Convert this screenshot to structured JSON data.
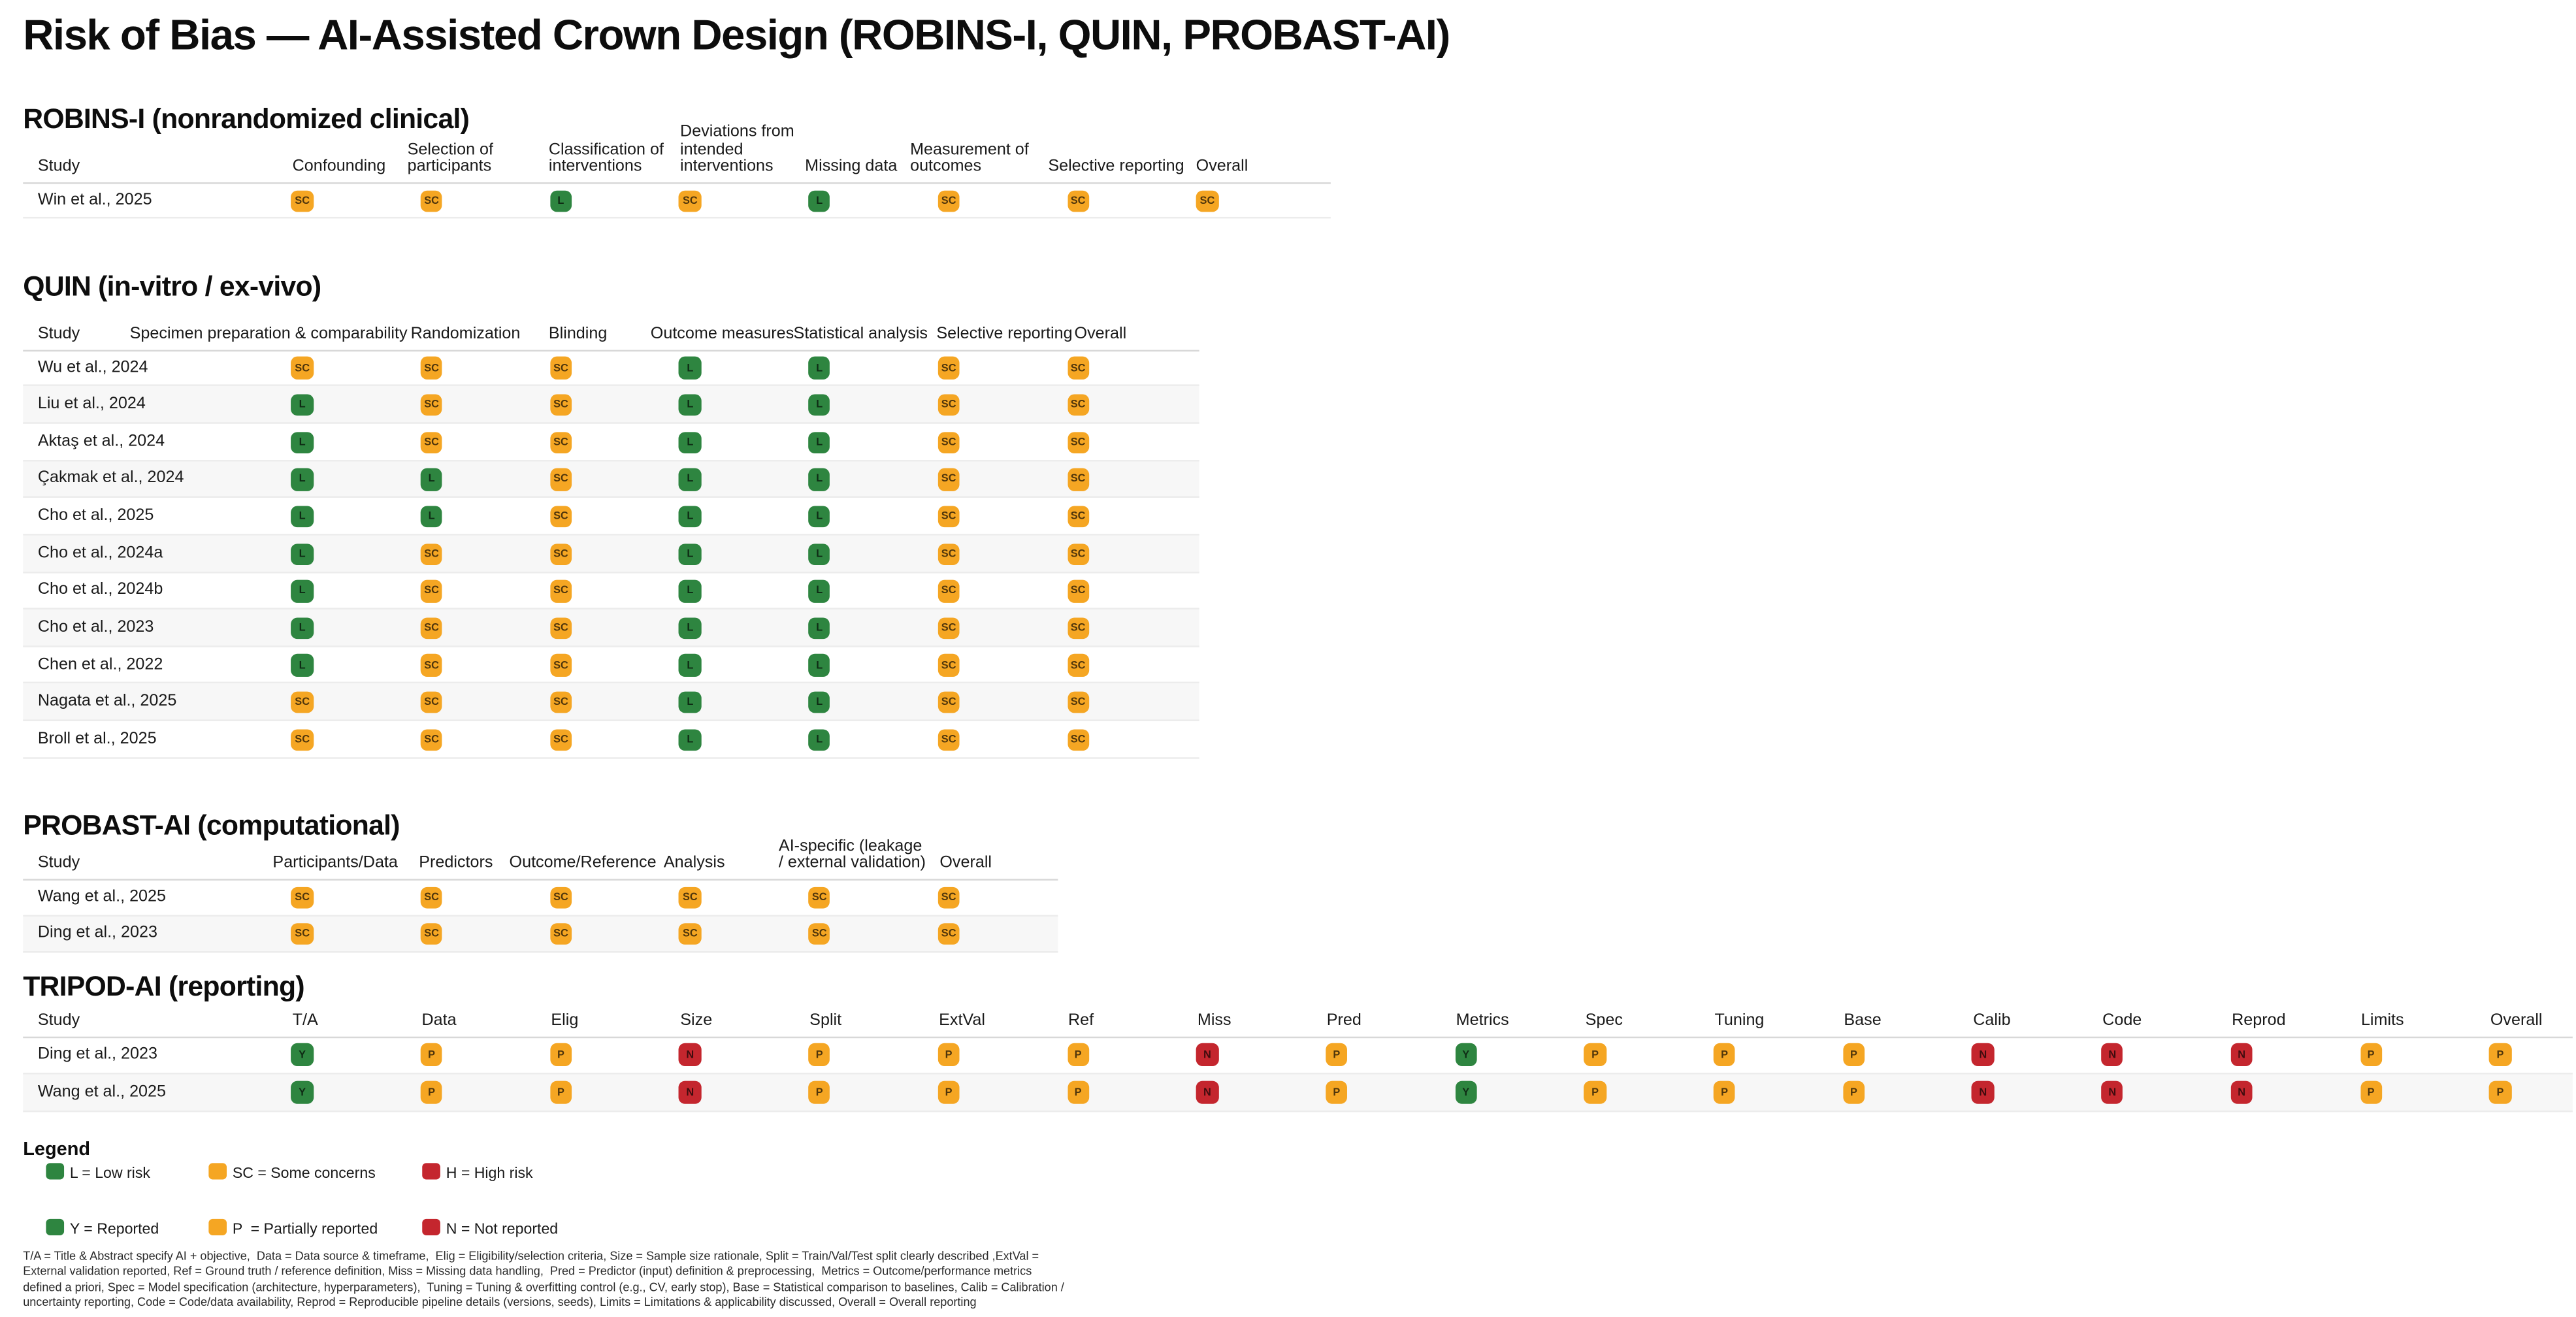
{
  "title": "Risk of Bias — AI-Assisted Crown Design (ROBINS-I, QUIN, PROBAST-AI)",
  "colors": {
    "low": "#2e8540",
    "some": "#f5a623",
    "high": "#c4262e"
  },
  "value_colors": {
    "L": "low",
    "SC": "some",
    "H": "high",
    "Y": "low",
    "P": "some",
    "N": "high"
  },
  "chart_data": [
    {
      "type": "table",
      "id": "robins",
      "title": "ROBINS-I (nonrandomized clinical)",
      "columns": [
        "Study",
        "Confounding",
        "Selection of participants",
        "Classification of interventions",
        "Deviations from intended interventions",
        "Missing data",
        "Measurement of outcomes",
        "Selective reporting",
        "Overall"
      ],
      "rows": [
        {
          "study": "Win et al., 2025",
          "values": [
            "SC",
            "SC",
            "L",
            "SC",
            "L",
            "SC",
            "SC",
            "SC"
          ]
        }
      ]
    },
    {
      "type": "table",
      "id": "quin",
      "title": "QUIN (in-vitro / ex-vivo)",
      "columns": [
        "Study",
        "Specimen preparation & comparability",
        "Randomization",
        "Blinding",
        "Outcome measures",
        "Statistical analysis",
        "Selective reporting",
        "Overall"
      ],
      "rows": [
        {
          "study": "Wu et al., 2024",
          "values": [
            "SC",
            "SC",
            "SC",
            "L",
            "L",
            "SC",
            "SC"
          ]
        },
        {
          "study": "Liu et al., 2024",
          "values": [
            "L",
            "SC",
            "SC",
            "L",
            "L",
            "SC",
            "SC"
          ]
        },
        {
          "study": "Aktaş et al., 2024",
          "values": [
            "L",
            "SC",
            "SC",
            "L",
            "L",
            "SC",
            "SC"
          ]
        },
        {
          "study": "Çakmak et al., 2024",
          "values": [
            "L",
            "L",
            "SC",
            "L",
            "L",
            "SC",
            "SC"
          ]
        },
        {
          "study": "Cho et al., 2025",
          "values": [
            "L",
            "L",
            "SC",
            "L",
            "L",
            "SC",
            "SC"
          ]
        },
        {
          "study": "Cho et al., 2024a",
          "values": [
            "L",
            "SC",
            "SC",
            "L",
            "L",
            "SC",
            "SC"
          ]
        },
        {
          "study": "Cho et al., 2024b",
          "values": [
            "L",
            "SC",
            "SC",
            "L",
            "L",
            "SC",
            "SC"
          ]
        },
        {
          "study": "Cho et al., 2023",
          "values": [
            "L",
            "SC",
            "SC",
            "L",
            "L",
            "SC",
            "SC"
          ]
        },
        {
          "study": "Chen et al., 2022",
          "values": [
            "L",
            "SC",
            "SC",
            "L",
            "L",
            "SC",
            "SC"
          ]
        },
        {
          "study": "Nagata et al., 2025",
          "values": [
            "SC",
            "SC",
            "SC",
            "L",
            "L",
            "SC",
            "SC"
          ]
        },
        {
          "study": "Broll et al., 2025",
          "values": [
            "SC",
            "SC",
            "SC",
            "L",
            "L",
            "SC",
            "SC"
          ]
        }
      ]
    },
    {
      "type": "table",
      "id": "probast",
      "title": "PROBAST-AI (computational)",
      "columns": [
        "Study",
        "Participants/Data",
        "Predictors",
        "Outcome/Reference",
        "Analysis",
        "AI-specific (leakage / external validation)",
        "Overall"
      ],
      "rows": [
        {
          "study": "Wang et al., 2025",
          "values": [
            "SC",
            "SC",
            "SC",
            "SC",
            "SC",
            "SC"
          ]
        },
        {
          "study": "Ding et al., 2023",
          "values": [
            "SC",
            "SC",
            "SC",
            "SC",
            "SC",
            "SC"
          ]
        }
      ]
    },
    {
      "type": "table",
      "id": "tripod",
      "title": "TRIPOD-AI (reporting)",
      "columns": [
        "Study",
        "T/A",
        "Data",
        "Elig",
        "Size",
        "Split",
        "ExtVal",
        "Ref",
        "Miss",
        "Pred",
        "Metrics",
        "Spec",
        "Tuning",
        "Base",
        "Calib",
        "Code",
        "Reprod",
        "Limits",
        "Overall"
      ],
      "rows": [
        {
          "study": "Ding et al., 2023",
          "values": [
            "Y",
            "P",
            "P",
            "N",
            "P",
            "P",
            "P",
            "N",
            "P",
            "Y",
            "P",
            "P",
            "P",
            "N",
            "N",
            "N",
            "P",
            "P"
          ]
        },
        {
          "study": "Wang et al., 2025",
          "values": [
            "Y",
            "P",
            "P",
            "N",
            "P",
            "P",
            "P",
            "N",
            "P",
            "Y",
            "P",
            "P",
            "P",
            "N",
            "N",
            "N",
            "P",
            "P"
          ]
        }
      ]
    }
  ],
  "legend": {
    "title": "Legend",
    "rows": [
      [
        {
          "label": "L = Low risk",
          "color": "low"
        },
        {
          "label": "SC = Some concerns",
          "color": "some"
        },
        {
          "label": "H = High risk",
          "color": "high"
        }
      ],
      [
        {
          "label": "Y = Reported",
          "color": "low"
        },
        {
          "label": "P  = Partially reported",
          "color": "some"
        },
        {
          "label": "N = Not reported",
          "color": "high"
        }
      ]
    ]
  },
  "footnote": "T/A = Title & Abstract specify AI + objective,  Data = Data source & timeframe,  Elig = Eligibility/selection criteria, Size = Sample size rationale, Split = Train/Val/Test split clearly described ,ExtVal = External validation reported, Ref = Ground truth / reference definition, Miss = Missing data handling,  Pred = Predictor (input) definition & preprocessing,  Metrics = Outcome/performance metrics defined a priori, Spec = Model specification (architecture, hyperparameters),  Tuning = Tuning & overfitting control (e.g., CV, early stop), Base = Statistical comparison to baselines, Calib = Calibration / uncertainty reporting, Code = Code/data availability, Reprod = Reproducible pipeline details (versions, seeds), Limits = Limitations & applicability discussed, Overall = Overall reporting"
}
